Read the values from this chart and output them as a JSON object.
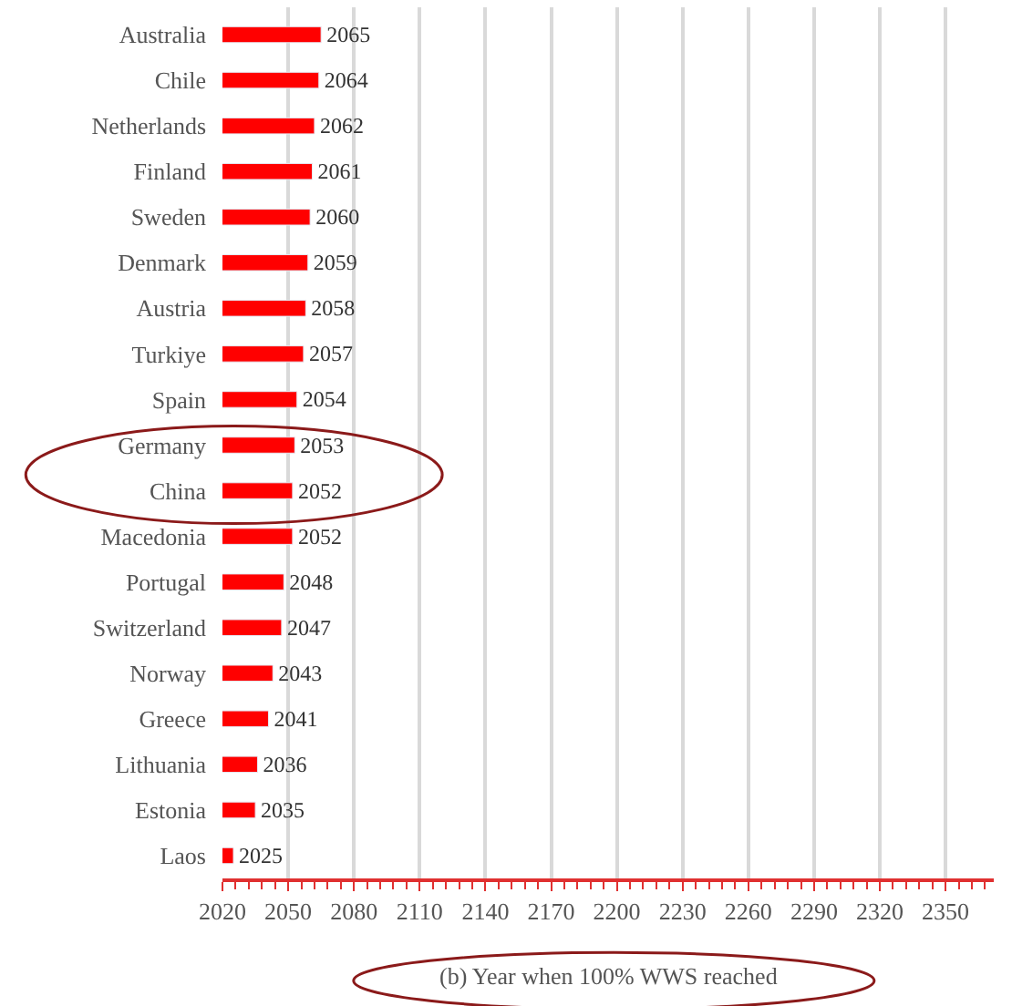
{
  "chart_data": {
    "type": "bar",
    "orientation": "horizontal",
    "categories": [
      "Australia",
      "Chile",
      "Netherlands",
      "Finland",
      "Sweden",
      "Denmark",
      "Austria",
      "Turkiye",
      "Spain",
      "Germany",
      "China",
      "Macedonia",
      "Portugal",
      "Switzerland",
      "Norway",
      "Greece",
      "Lithuania",
      "Estonia",
      "Laos"
    ],
    "values": [
      2065,
      2064,
      2062,
      2061,
      2060,
      2059,
      2058,
      2057,
      2054,
      2053,
      2052,
      2052,
      2048,
      2047,
      2043,
      2041,
      2036,
      2035,
      2025
    ],
    "color": "#ff0000",
    "data_labels": true,
    "xlabel": "(b) Year when 100% WWS reached",
    "xlim": [
      2020,
      2372
    ],
    "xticks": [
      2020,
      2050,
      2080,
      2110,
      2140,
      2170,
      2200,
      2230,
      2260,
      2290,
      2320,
      2350
    ],
    "grid": "x"
  }
}
